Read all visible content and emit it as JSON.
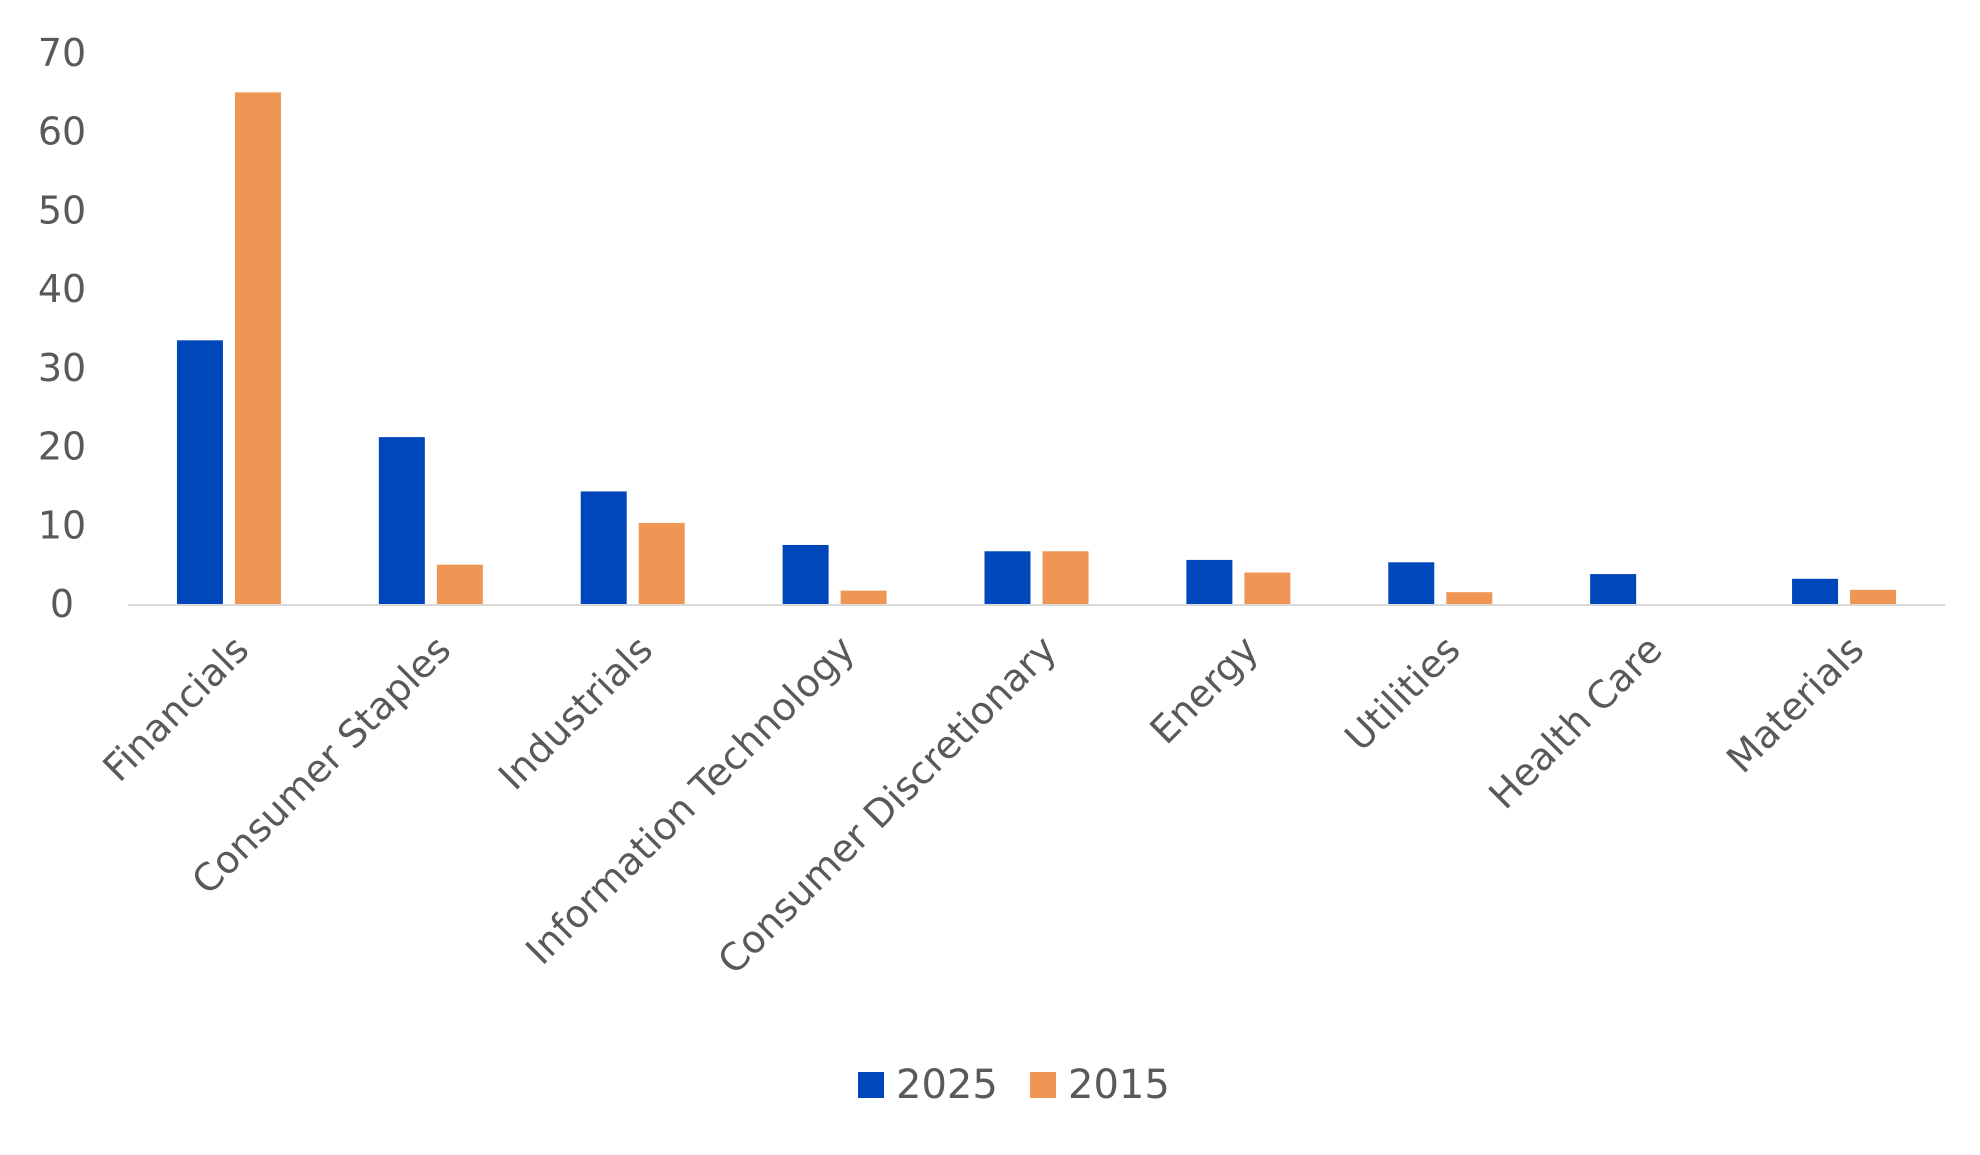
{
  "chart_data": {
    "type": "bar",
    "categories": [
      "Financials",
      "Consumer Staples",
      "Industrials",
      "Information Technology",
      "Consumer Discretionary",
      "Energy",
      "Utilities",
      "Health Care",
      "Materials"
    ],
    "series": [
      {
        "name": "2025",
        "color": "#0047BB",
        "values": [
          33.5,
          21.2,
          14.3,
          7.5,
          6.7,
          5.6,
          5.3,
          3.8,
          3.2
        ]
      },
      {
        "name": "2015",
        "color": "#F09654",
        "values": [
          65.0,
          5.0,
          10.3,
          1.7,
          6.7,
          4.0,
          1.5,
          0,
          1.8
        ]
      }
    ],
    "title": "",
    "xlabel": "",
    "ylabel": "",
    "ylim": [
      0,
      70
    ],
    "yticks": [
      "0",
      "10",
      "20",
      "30",
      "40",
      "50",
      "60",
      "70"
    ],
    "grid": false,
    "legend_position": "bottom",
    "axis_color": "#D9D9D9"
  }
}
